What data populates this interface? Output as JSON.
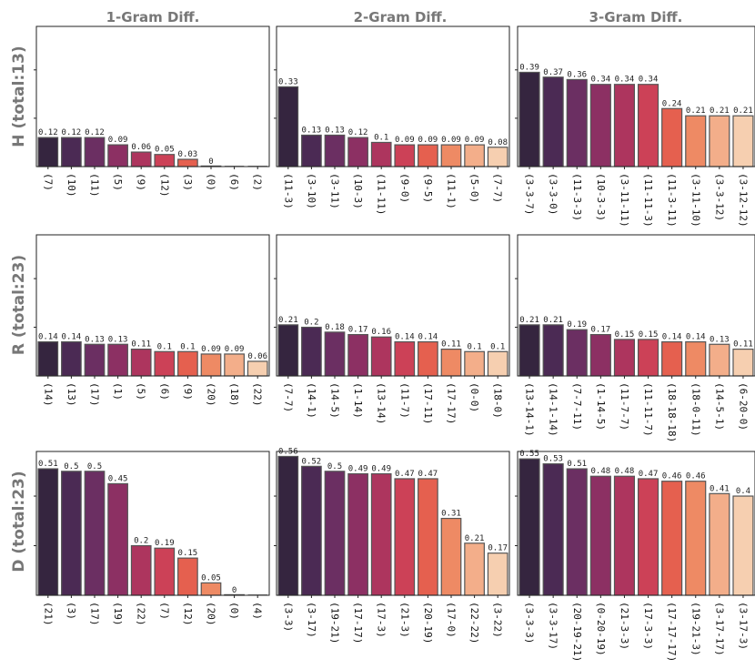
{
  "chart_data": {
    "type": "bar",
    "column_titles": [
      "1-Gram Diff.",
      "2-Gram Diff.",
      "3-Gram Diff."
    ],
    "row_labels": [
      "H (total:13)",
      "R  (total:23)",
      "D  (total:23)"
    ],
    "ylim": [
      0,
      0.58
    ],
    "palette": [
      "#35253f",
      "#4b2a54",
      "#6b2f62",
      "#8c3063",
      "#ad355e",
      "#cc4157",
      "#e5604f",
      "#ee8a64",
      "#f3ae8a",
      "#f6cfb0"
    ],
    "panels": [
      [
        {
          "categories": [
            "(7)",
            "(10)",
            "(11)",
            "(5)",
            "(9)",
            "(12)",
            "(3)",
            "(0)",
            "(6)",
            "(2)"
          ],
          "values": [
            0.12,
            0.12,
            0.12,
            0.09,
            0.06,
            0.05,
            0.03,
            0,
            null,
            null
          ],
          "labels": [
            "0.12",
            "0.12",
            "0.12",
            "0.09",
            "0.06",
            "0.05",
            "0.03",
            "0",
            "",
            ""
          ]
        },
        {
          "categories": [
            "(11-3)",
            "(3-10)",
            "(3-11)",
            "(10-3)",
            "(11-11)",
            "(9-0)",
            "(9-5)",
            "(11-1)",
            "(5-0)",
            "(7-7)"
          ],
          "values": [
            0.33,
            0.13,
            0.13,
            0.12,
            0.1,
            0.09,
            0.09,
            0.09,
            0.09,
            0.08
          ],
          "labels": [
            "0.33",
            "0.13",
            "0.13",
            "0.12",
            "0.1",
            "0.09",
            "0.09",
            "0.09",
            "0.09",
            "0.08"
          ]
        },
        {
          "categories": [
            "(3-3-7)",
            "(3-3-0)",
            "(11-3-3)",
            "(10-3-3)",
            "(3-11-11)",
            "(11-11-3)",
            "(11-3-11)",
            "(3-11-10)",
            "(3-3-12)",
            "(3-12-12)"
          ],
          "values": [
            0.39,
            0.37,
            0.36,
            0.34,
            0.34,
            0.34,
            0.24,
            0.21,
            0.21,
            0.21
          ],
          "labels": [
            "0.39",
            "0.37",
            "0.36",
            "0.34",
            "0.34",
            "0.34",
            "0.24",
            "0.21",
            "0.21",
            "0.21"
          ]
        }
      ],
      [
        {
          "categories": [
            "(14)",
            "(13)",
            "(17)",
            "(1)",
            "(5)",
            "(6)",
            "(9)",
            "(20)",
            "(18)",
            "(22)"
          ],
          "values": [
            0.14,
            0.14,
            0.13,
            0.13,
            0.11,
            0.1,
            0.1,
            0.09,
            0.09,
            0.06
          ],
          "labels": [
            "0.14",
            "0.14",
            "0.13",
            "0.13",
            "0.11",
            "0.1",
            "0.1",
            "0.09",
            "0.09",
            "0.06"
          ]
        },
        {
          "categories": [
            "(7-7)",
            "(14-1)",
            "(14-5)",
            "(1-14)",
            "(13-14)",
            "(11-7)",
            "(17-11)",
            "(17-17)",
            "(0-0)",
            "(18-0)"
          ],
          "values": [
            0.21,
            0.2,
            0.18,
            0.17,
            0.16,
            0.14,
            0.14,
            0.11,
            0.1,
            0.1
          ],
          "labels": [
            "0.21",
            "0.2",
            "0.18",
            "0.17",
            "0.16",
            "0.14",
            "0.14",
            "0.11",
            "0.1",
            "0.1"
          ]
        },
        {
          "categories": [
            "(13-14-1)",
            "(14-1-14)",
            "(7-7-11)",
            "(1-14-5)",
            "(11-7-7)",
            "(11-11-7)",
            "(18-18-18)",
            "(18-0-11)",
            "(14-5-1)",
            "(6-20-0)"
          ],
          "values": [
            0.21,
            0.21,
            0.19,
            0.17,
            0.15,
            0.15,
            0.14,
            0.14,
            0.13,
            0.11
          ],
          "labels": [
            "0.21",
            "0.21",
            "0.19",
            "0.17",
            "0.15",
            "0.15",
            "0.14",
            "0.14",
            "0.13",
            "0.11"
          ]
        }
      ],
      [
        {
          "categories": [
            "(21)",
            "(3)",
            "(17)",
            "(19)",
            "(22)",
            "(7)",
            "(12)",
            "(20)",
            "(0)",
            "(4)"
          ],
          "values": [
            0.51,
            0.5,
            0.5,
            0.45,
            0.2,
            0.19,
            0.15,
            0.05,
            0,
            null
          ],
          "labels": [
            "0.51",
            "0.5",
            "0.5",
            "0.45",
            "0.2",
            "0.19",
            "0.15",
            "0.05",
            "0",
            ""
          ]
        },
        {
          "categories": [
            "(3-3)",
            "(3-17)",
            "(19-21)",
            "(17-17)",
            "(17-3)",
            "(21-3)",
            "(20-19)",
            "(17-0)",
            "(22-22)",
            "(3-22)"
          ],
          "values": [
            0.56,
            0.52,
            0.5,
            0.49,
            0.49,
            0.47,
            0.47,
            0.31,
            0.21,
            0.17
          ],
          "labels": [
            "0.56",
            "0.52",
            "0.5",
            "0.49",
            "0.49",
            "0.47",
            "0.47",
            "0.31",
            "0.21",
            "0.17"
          ]
        },
        {
          "categories": [
            "(3-3-3)",
            "(3-3-17)",
            "(20-19-21)",
            "(0-20-19)",
            "(21-3-3)",
            "(17-3-3)",
            "(17-17-17)",
            "(19-21-3)",
            "(3-17-17)",
            "(3-17-3)"
          ],
          "values": [
            0.55,
            0.53,
            0.51,
            0.48,
            0.48,
            0.47,
            0.46,
            0.46,
            0.41,
            0.4
          ],
          "labels": [
            "0.55",
            "0.53",
            "0.51",
            "0.48",
            "0.48",
            "0.47",
            "0.46",
            "0.46",
            "0.41",
            "0.4"
          ]
        }
      ]
    ]
  }
}
